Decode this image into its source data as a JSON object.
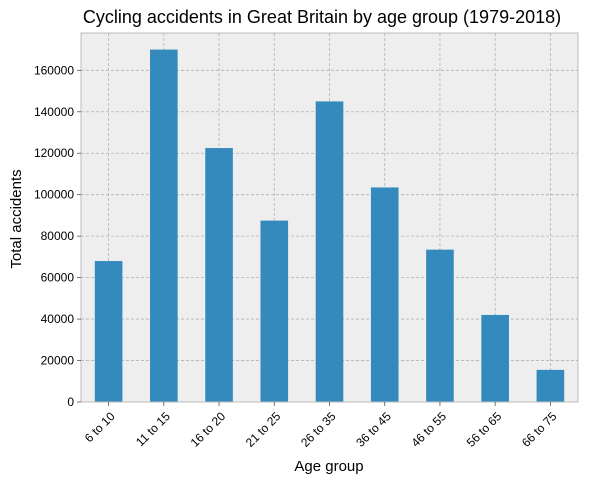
{
  "chart_data": {
    "type": "bar",
    "title": "Cycling accidents in Great Britain by age group (1979-2018)",
    "xlabel": "Age group",
    "ylabel": "Total accidents",
    "categories": [
      "6 to 10",
      "11 to 15",
      "16 to 20",
      "21 to 25",
      "26 to 35",
      "36 to 45",
      "46 to 55",
      "56 to 65",
      "66 to 75"
    ],
    "values": [
      68000,
      170000,
      122500,
      87500,
      145000,
      103500,
      73500,
      42000,
      15500
    ],
    "ylim": [
      0,
      178000
    ],
    "yticks": [
      0,
      20000,
      40000,
      60000,
      80000,
      100000,
      120000,
      140000,
      160000
    ],
    "grid": true,
    "legend": "none",
    "colors": {
      "bar": "#348ABD",
      "plot_background": "#EEEEEE",
      "grid": "#B2B2B2",
      "frame": "#BCBCBC"
    }
  }
}
